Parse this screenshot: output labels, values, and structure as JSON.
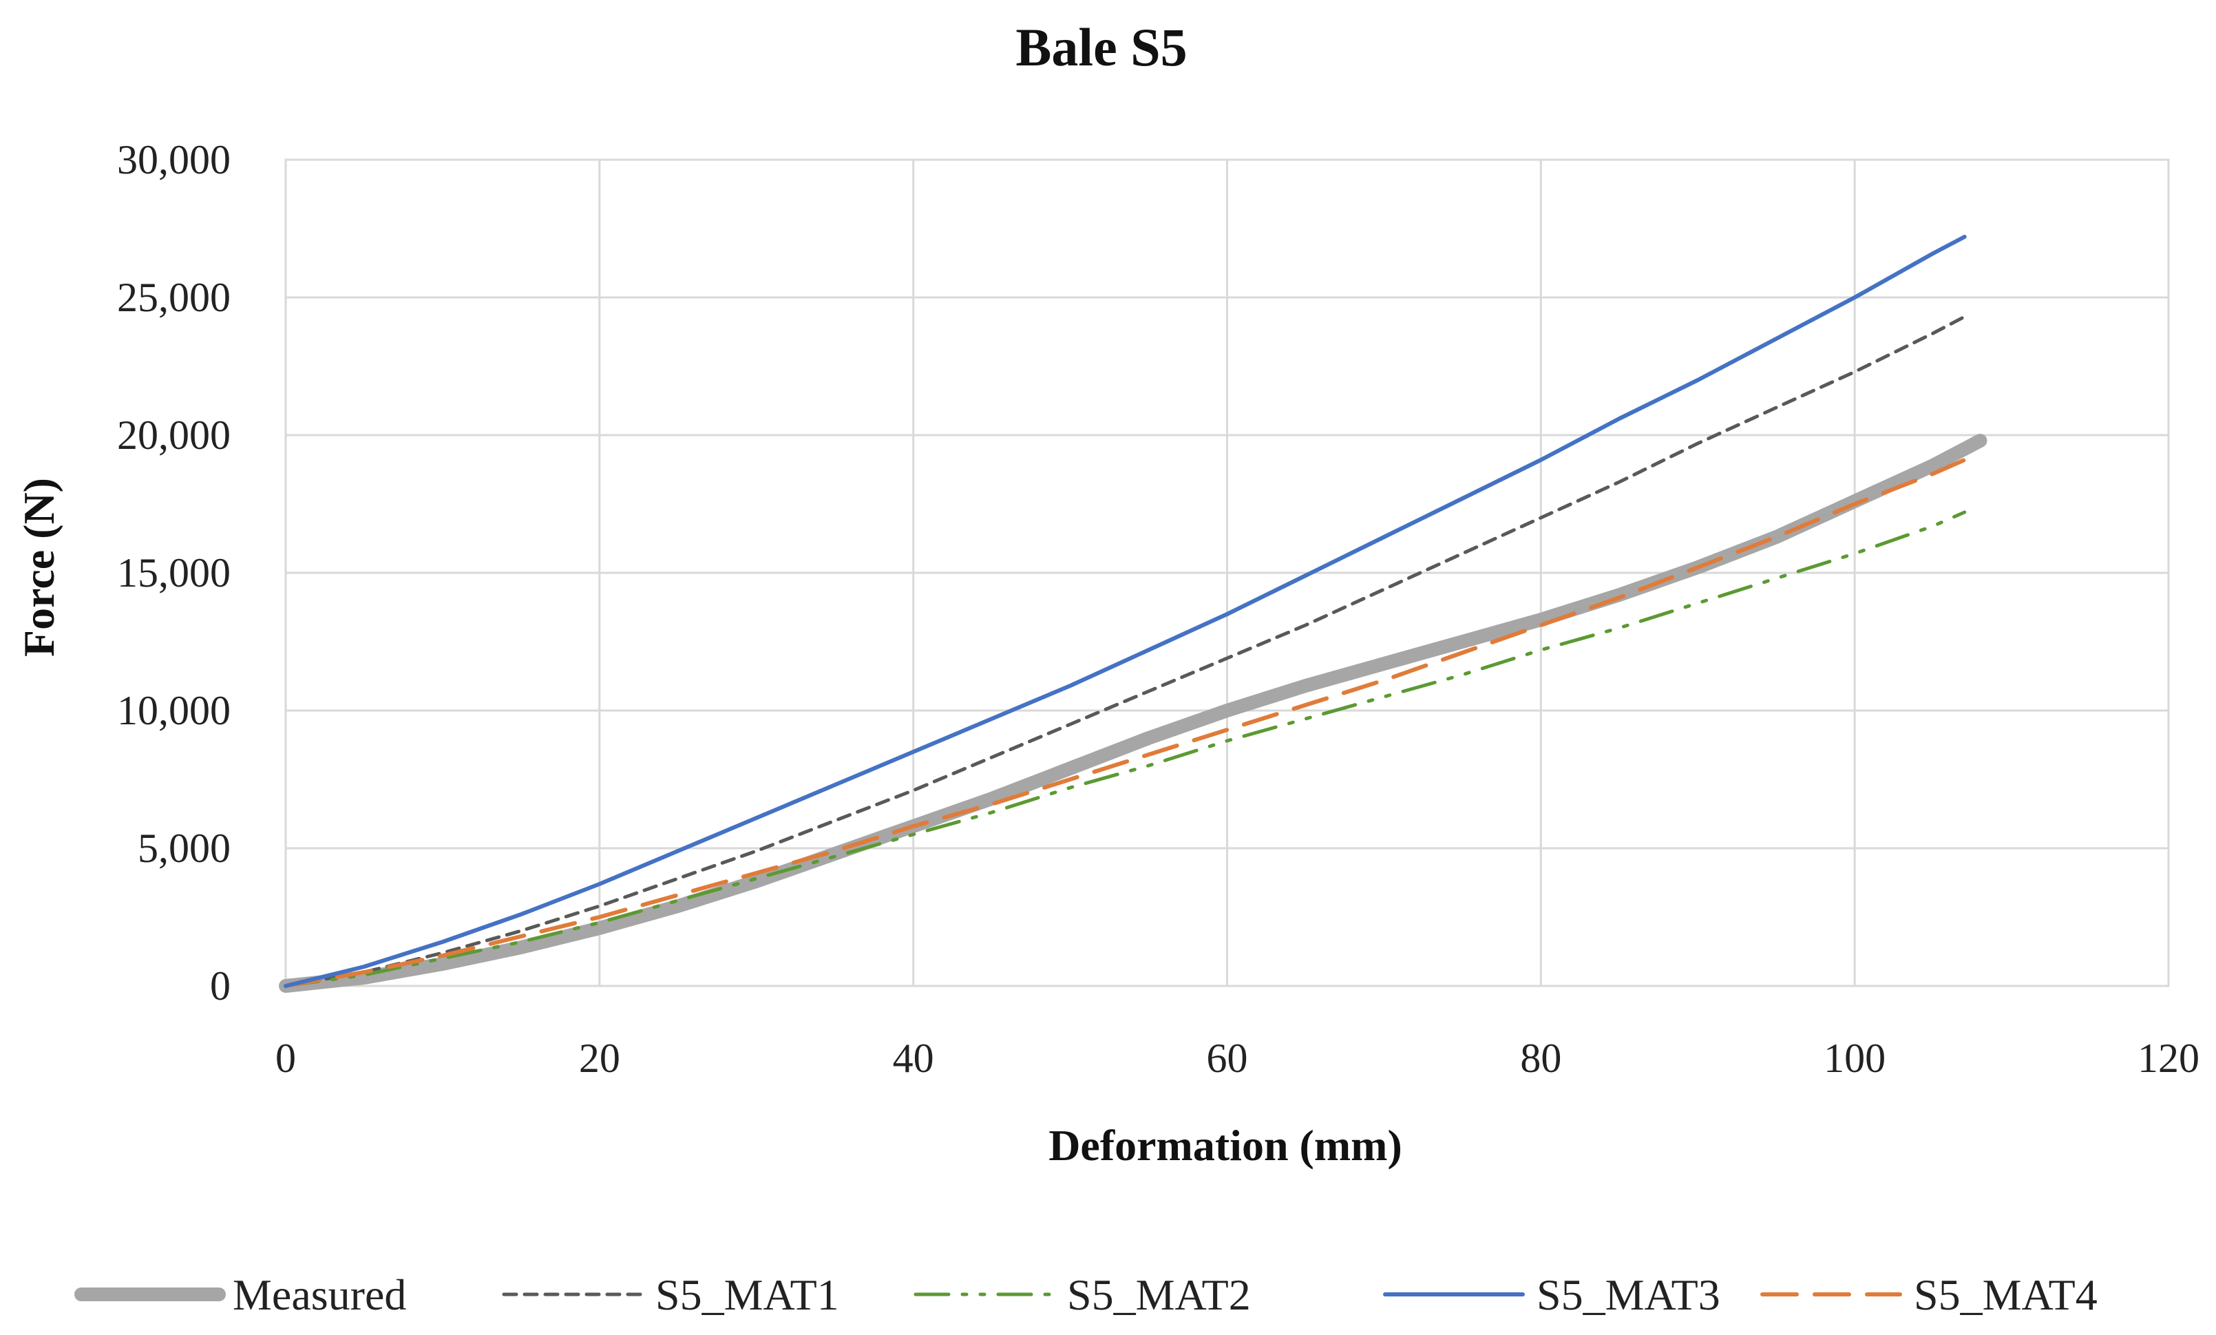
{
  "chart_data": {
    "type": "line",
    "title": "Bale S5",
    "xlabel": "Deformation (mm)",
    "ylabel": "Force (N)",
    "xlim": [
      0,
      120
    ],
    "ylim": [
      0,
      30000
    ],
    "x_ticks": [
      0,
      20,
      40,
      60,
      80,
      100,
      120
    ],
    "y_ticks": [
      0,
      5000,
      10000,
      15000,
      20000,
      25000,
      30000
    ],
    "x_tick_labels": [
      "0",
      "20",
      "40",
      "60",
      "80",
      "100",
      "120"
    ],
    "y_tick_labels": [
      "0",
      "5,000",
      "10,000",
      "15,000",
      "20,000",
      "25,000",
      "30,000"
    ],
    "grid": true,
    "legend_position": "bottom",
    "series": [
      {
        "name": "Measured",
        "color": "#a6a6a6",
        "style": "solid-thick",
        "x": [
          0,
          5,
          10,
          15,
          20,
          25,
          30,
          35,
          40,
          45,
          50,
          55,
          60,
          65,
          70,
          75,
          80,
          85,
          90,
          95,
          100,
          105,
          108
        ],
        "y": [
          0,
          300,
          800,
          1400,
          2100,
          2900,
          3800,
          4800,
          5800,
          6800,
          7900,
          9000,
          10000,
          10900,
          11700,
          12500,
          13300,
          14200,
          15200,
          16300,
          17600,
          18900,
          19800
        ]
      },
      {
        "name": "S5_MAT1",
        "color": "#595959",
        "style": "dashed",
        "x": [
          0,
          5,
          10,
          15,
          20,
          25,
          30,
          35,
          40,
          45,
          50,
          55,
          60,
          65,
          70,
          75,
          80,
          85,
          90,
          95,
          100,
          105,
          107
        ],
        "y": [
          0,
          500,
          1200,
          2000,
          2900,
          3900,
          4900,
          6000,
          7100,
          8300,
          9500,
          10700,
          11900,
          13100,
          14400,
          15700,
          17000,
          18300,
          19700,
          21000,
          22300,
          23700,
          24300
        ]
      },
      {
        "name": "S5_MAT2",
        "color": "#5b9a32",
        "style": "dash-dot-dot",
        "x": [
          0,
          5,
          10,
          15,
          20,
          25,
          30,
          35,
          40,
          45,
          50,
          55,
          60,
          65,
          70,
          75,
          80,
          85,
          90,
          95,
          100,
          105,
          107
        ],
        "y": [
          0,
          400,
          1000,
          1600,
          2300,
          3100,
          3900,
          4700,
          5500,
          6300,
          7200,
          8000,
          8900,
          9700,
          10500,
          11300,
          12200,
          13000,
          13900,
          14800,
          15700,
          16700,
          17200
        ]
      },
      {
        "name": "S5_MAT3",
        "color": "#4472c4",
        "style": "solid",
        "x": [
          0,
          5,
          10,
          15,
          20,
          25,
          30,
          35,
          40,
          45,
          50,
          55,
          60,
          65,
          70,
          75,
          80,
          85,
          90,
          95,
          100,
          105,
          107
        ],
        "y": [
          0,
          700,
          1600,
          2600,
          3700,
          4900,
          6100,
          7300,
          8500,
          9700,
          10900,
          12200,
          13500,
          14900,
          16300,
          17700,
          19100,
          20600,
          22000,
          23500,
          25000,
          26600,
          27200
        ]
      },
      {
        "name": "S5_MAT4",
        "color": "#e07b39",
        "style": "long-dash",
        "x": [
          0,
          5,
          10,
          15,
          20,
          25,
          30,
          35,
          40,
          45,
          50,
          55,
          60,
          65,
          70,
          75,
          80,
          85,
          90,
          95,
          100,
          105,
          107
        ],
        "y": [
          0,
          500,
          1100,
          1800,
          2500,
          3300,
          4100,
          4900,
          5800,
          6600,
          7500,
          8400,
          9300,
          10200,
          11100,
          12100,
          13100,
          14100,
          15200,
          16300,
          17500,
          18600,
          19100
        ]
      }
    ]
  }
}
